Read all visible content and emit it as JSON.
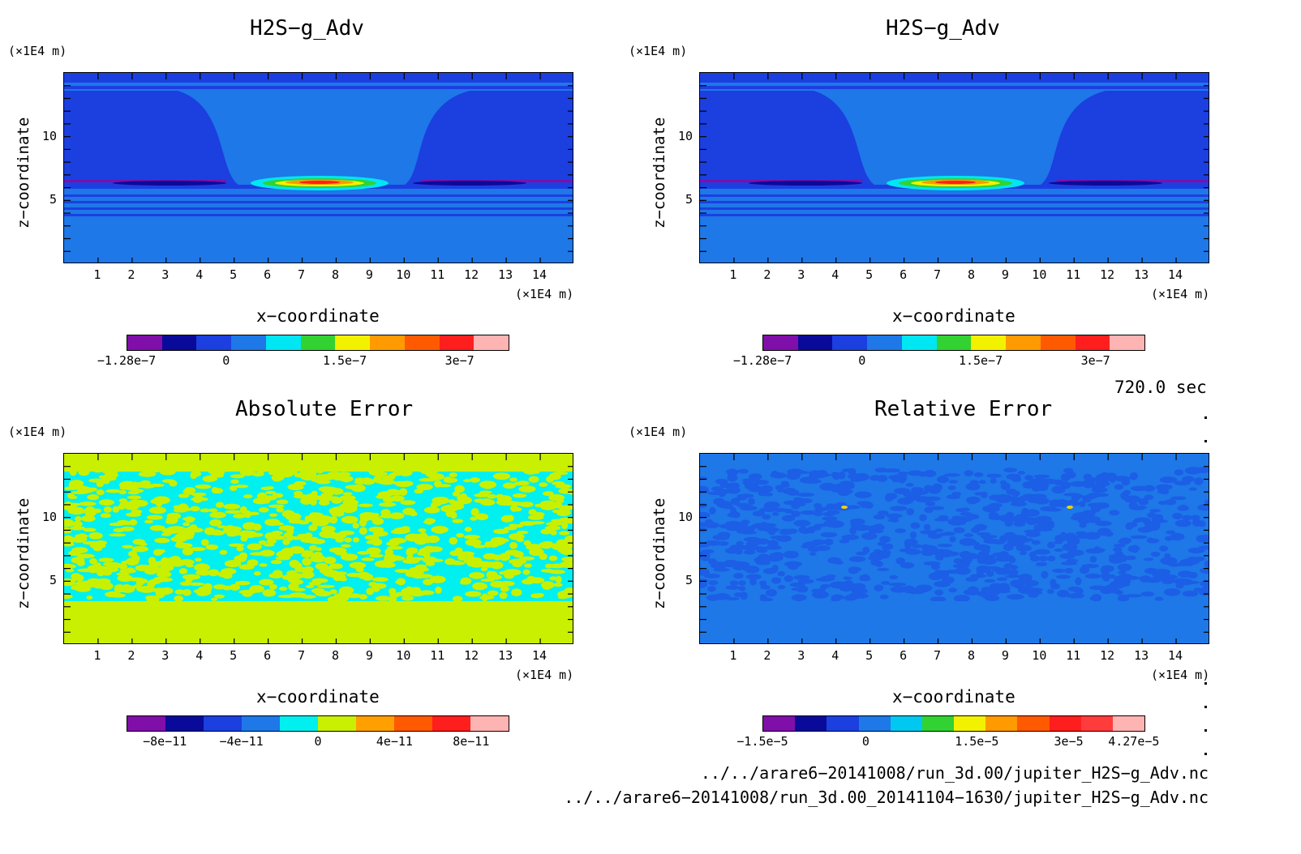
{
  "chart_data": [
    {
      "type": "heatmap",
      "title": "H2S−g_Adv",
      "xlabel": "x−coordinate",
      "ylabel": "z−coordinate",
      "x_unit": "(×1E4 m)",
      "y_unit": "(×1E4 m)",
      "xticks": [
        "1",
        "2",
        "3",
        "4",
        "5",
        "6",
        "7",
        "8",
        "9",
        "10",
        "11",
        "12",
        "13",
        "14"
      ],
      "yticks": [
        "5",
        "10"
      ],
      "xlim": [
        0,
        15
      ],
      "ylim": [
        0,
        15
      ],
      "colorbar": {
        "colors": [
          "#7f0fa8",
          "#0a0a9a",
          "#1c3fe0",
          "#1e78e8",
          "#00e6f2",
          "#32d232",
          "#f2f200",
          "#ff9a00",
          "#ff5a00",
          "#ff1e1e",
          "#ffb4b4"
        ],
        "labels": [
          "−1.28e−7",
          "0",
          "1.5e−7",
          "3e−7"
        ]
      }
    },
    {
      "type": "heatmap",
      "title": "H2S−g_Adv",
      "xlabel": "x−coordinate",
      "ylabel": "z−coordinate",
      "x_unit": "(×1E4 m)",
      "y_unit": "(×1E4 m)",
      "xticks": [
        "1",
        "2",
        "3",
        "4",
        "5",
        "6",
        "7",
        "8",
        "9",
        "10",
        "11",
        "12",
        "13",
        "14"
      ],
      "yticks": [
        "5",
        "10"
      ],
      "xlim": [
        0,
        15
      ],
      "ylim": [
        0,
        15
      ],
      "colorbar": {
        "colors": [
          "#7f0fa8",
          "#0a0a9a",
          "#1c3fe0",
          "#1e78e8",
          "#00e6f2",
          "#32d232",
          "#f2f200",
          "#ff9a00",
          "#ff5a00",
          "#ff1e1e",
          "#ffb4b4"
        ],
        "labels": [
          "−1.28e−7",
          "0",
          "1.5e−7",
          "3e−7"
        ]
      }
    },
    {
      "type": "heatmap",
      "title": "Absolute Error",
      "xlabel": "x−coordinate",
      "ylabel": "z−coordinate",
      "x_unit": "(×1E4 m)",
      "y_unit": "(×1E4 m)",
      "xticks": [
        "1",
        "2",
        "3",
        "4",
        "5",
        "6",
        "7",
        "8",
        "9",
        "10",
        "11",
        "12",
        "13",
        "14"
      ],
      "yticks": [
        "5",
        "10"
      ],
      "xlim": [
        0,
        15
      ],
      "ylim": [
        0,
        15
      ],
      "colorbar": {
        "colors": [
          "#7f0fa8",
          "#0a0a9a",
          "#1c3fe0",
          "#1e78e8",
          "#00f0f0",
          "#c8f000",
          "#ffa000",
          "#ff5a00",
          "#ff1e1e",
          "#ffb4b4"
        ],
        "labels": [
          "−8e−11",
          "−4e−11",
          "0",
          "4e−11",
          "8e−11"
        ]
      }
    },
    {
      "type": "heatmap",
      "title": "Relative Error",
      "xlabel": "x−coordinate",
      "ylabel": "z−coordinate",
      "x_unit": "(×1E4 m)",
      "y_unit": "(×1E4 m)",
      "xticks": [
        "1",
        "2",
        "3",
        "4",
        "5",
        "6",
        "7",
        "8",
        "9",
        "10",
        "11",
        "12",
        "13",
        "14"
      ],
      "yticks": [
        "5",
        "10"
      ],
      "xlim": [
        0,
        15
      ],
      "ylim": [
        0,
        15
      ],
      "colorbar": {
        "colors": [
          "#7f0fa8",
          "#0a0a9a",
          "#1c3fe0",
          "#1e78e8",
          "#00c8f0",
          "#32d232",
          "#f2f200",
          "#ff9a00",
          "#ff5a00",
          "#ff1e1e",
          "#ff3c3c",
          "#ffb4b4"
        ],
        "labels": [
          "−1.5e−5",
          "0",
          "1.5e−5",
          "3e−5",
          "4.27e−5"
        ]
      }
    }
  ],
  "time_label": "720.0 sec",
  "file_paths": [
    "../../arare6−20141008/run_3d.00/jupiter_H2S−g_Adv.nc",
    "../../arare6−20141008/run_3d.00_20141104−1630/jupiter_H2S−g_Adv.nc"
  ]
}
